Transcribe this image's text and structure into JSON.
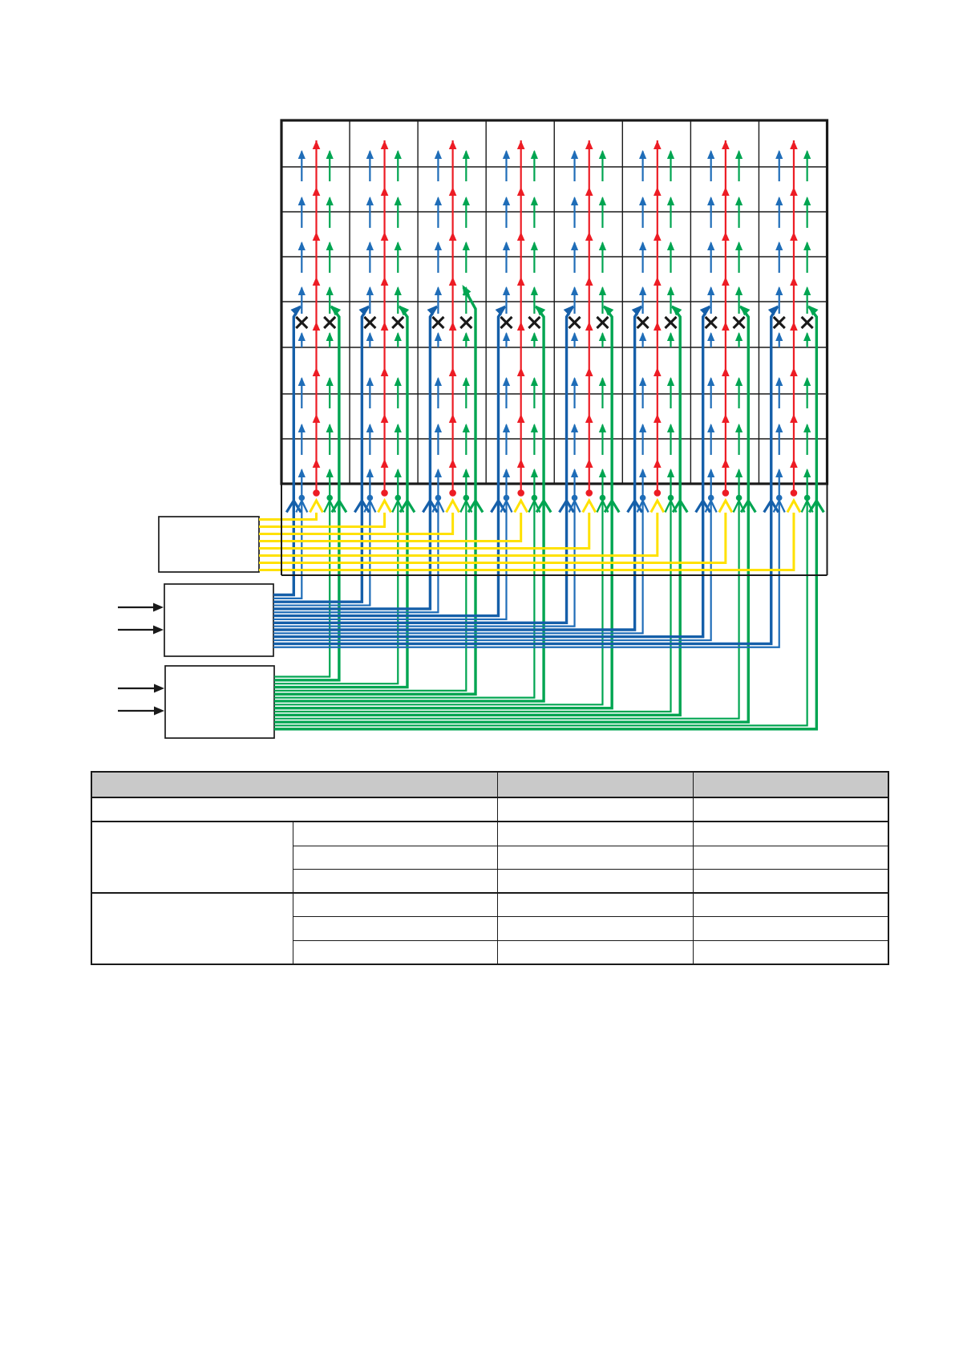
{
  "page": {
    "background": "#ffffff"
  },
  "diagram": {
    "name": "panel-repair-wiring-diagram",
    "colors": {
      "red": "#ed1c24",
      "green": "#00a551",
      "blue_thin": "#1f6db8",
      "blue_thick": "#155fa9",
      "yellow": "#ffe100",
      "black": "#1a1a1a",
      "table_header_fill": "#c9c9c9",
      "box_fill": "#ffffff"
    },
    "panel": {
      "columns": 8,
      "rows": 8,
      "lines_per_cell": [
        "blue",
        "red",
        "green"
      ],
      "defect_row": 5,
      "defect_mark": "x-cross",
      "defect_marked_lines": [
        "blue",
        "green"
      ],
      "repair_exception_column": 3
    },
    "interconnect": {
      "terminals_per_column": [
        "thick-blue",
        "thin-blue",
        "yellow-to-red",
        "thin-green",
        "thick-green"
      ],
      "dot_colors_per_column": [
        "blue",
        "red",
        "green"
      ],
      "chevron_arrows_per_column": 5
    },
    "driver_boxes": [
      {
        "id": "yellow-driver-box",
        "label": "",
        "wire_color": "yellow",
        "wire_count": 8,
        "input_arrows": 0
      },
      {
        "id": "blue-driver-box",
        "label": "",
        "wire_color": "blue",
        "wire_count": 16,
        "input_arrows": 2
      },
      {
        "id": "green-driver-box",
        "label": "",
        "wire_color": "green",
        "wire_count": 16,
        "input_arrows": 2
      }
    ],
    "table": {
      "columns": 4,
      "header_row": {
        "cells": [
          "",
          "",
          ""
        ]
      },
      "body_rows": [
        [
          "",
          "",
          ""
        ],
        [
          "",
          "",
          "",
          ""
        ],
        [
          "",
          "",
          ""
        ],
        [
          "",
          "",
          ""
        ],
        [
          "",
          "",
          "",
          ""
        ],
        [
          "",
          "",
          ""
        ],
        [
          "",
          "",
          ""
        ]
      ]
    }
  }
}
